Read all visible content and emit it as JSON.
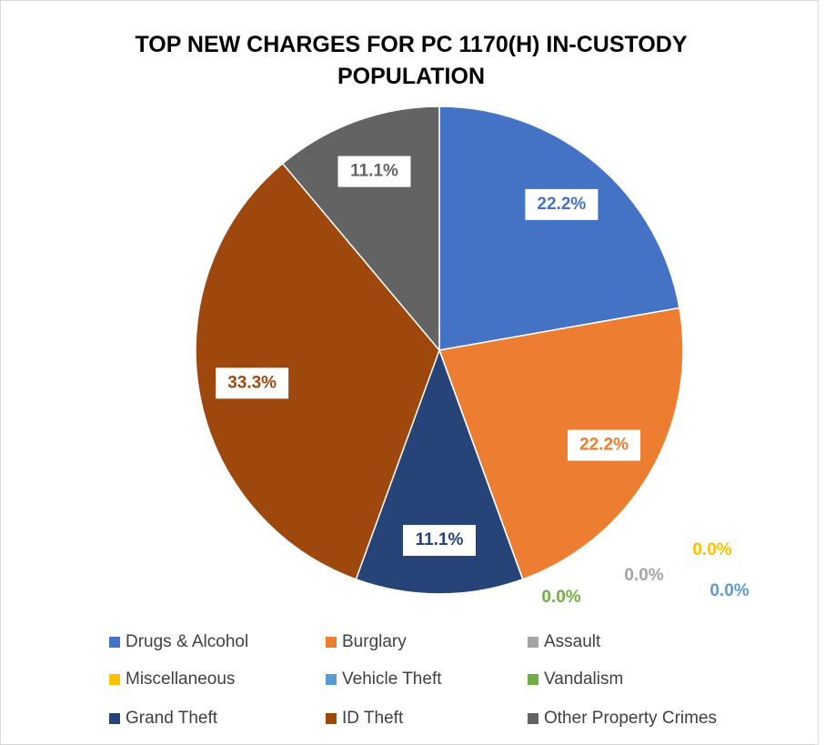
{
  "chart_data": {
    "type": "pie",
    "title": "TOP NEW CHARGES FOR PC 1170(H) IN-CUSTODY POPULATION",
    "categories": [
      "Drugs & Alcohol",
      "Burglary",
      "Assault",
      "Miscellaneous",
      "Vehicle Theft",
      "Vandalism",
      "Grand Theft",
      "ID Theft",
      "Other Property Crimes"
    ],
    "values": [
      22.2,
      22.2,
      0,
      0,
      0,
      0,
      11.1,
      33.3,
      11.1
    ],
    "value_labels": [
      "22.2%",
      "22.2%",
      "0.0%",
      "0.0%",
      "0.0%",
      "0.0%",
      "11.1%",
      "33.3%",
      "11.1%"
    ],
    "colors": [
      "#4472c4",
      "#ed7d31",
      "#a5a5a5",
      "#ffc000",
      "#5b9bd5",
      "#70ad47",
      "#264478",
      "#9e480e",
      "#636363"
    ],
    "legend": "bottom"
  }
}
